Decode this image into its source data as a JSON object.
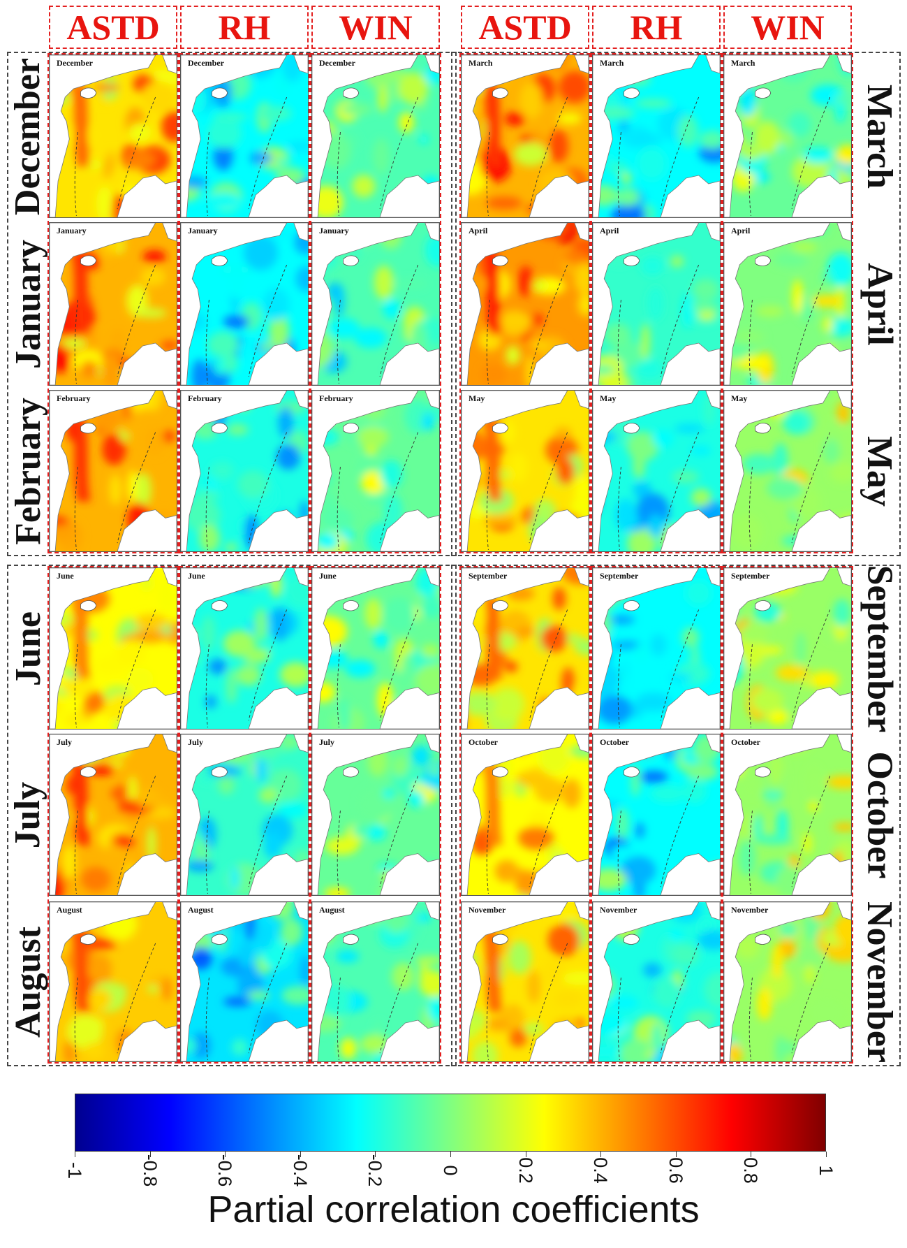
{
  "figure": {
    "variables": [
      "ASTD",
      "RH",
      "WIN"
    ],
    "groups": [
      {
        "rows": [
          "December",
          "January",
          "February"
        ],
        "label_side": "left"
      },
      {
        "rows": [
          "March",
          "April",
          "May"
        ],
        "label_side": "right"
      },
      {
        "rows": [
          "June",
          "July",
          "August"
        ],
        "label_side": "left"
      },
      {
        "rows": [
          "September",
          "October",
          "November"
        ],
        "label_side": "right"
      }
    ]
  },
  "colorbar": {
    "title": "Partial correlation coefficients",
    "range": [
      -1,
      1
    ],
    "colormap": "jet",
    "ticks": [
      "-1",
      "-0.8",
      "-0.6",
      "-0.4",
      "-0.2",
      "0",
      "0.2",
      "0.4",
      "0.6",
      "0.8",
      "1"
    ],
    "tick_values": [
      -1,
      -0.8,
      -0.6,
      -0.4,
      -0.2,
      0,
      0.2,
      0.4,
      0.6,
      0.8,
      1
    ]
  },
  "map_fields": {
    "December": {
      "ASTD": 0.3,
      "RH": -0.25,
      "WIN": -0.1
    },
    "January": {
      "ASTD": 0.4,
      "RH": -0.25,
      "WIN": -0.1
    },
    "February": {
      "ASTD": 0.4,
      "RH": -0.2,
      "WIN": -0.05
    },
    "March": {
      "ASTD": 0.4,
      "RH": -0.25,
      "WIN": -0.05
    },
    "April": {
      "ASTD": 0.45,
      "RH": -0.15,
      "WIN": 0.0
    },
    "May": {
      "ASTD": 0.3,
      "RH": -0.2,
      "WIN": 0.05
    },
    "June": {
      "ASTD": 0.25,
      "RH": -0.2,
      "WIN": -0.05
    },
    "July": {
      "ASTD": 0.4,
      "RH": -0.15,
      "WIN": -0.05
    },
    "August": {
      "ASTD": 0.35,
      "RH": -0.3,
      "WIN": -0.1
    },
    "September": {
      "ASTD": 0.3,
      "RH": -0.25,
      "WIN": 0.05
    },
    "October": {
      "ASTD": 0.25,
      "RH": -0.25,
      "WIN": 0.05
    },
    "November": {
      "ASTD": 0.3,
      "RH": -0.2,
      "WIN": 0.05
    }
  },
  "colors": {
    "header_red": "#e8150f",
    "dash_black": "#444444"
  }
}
